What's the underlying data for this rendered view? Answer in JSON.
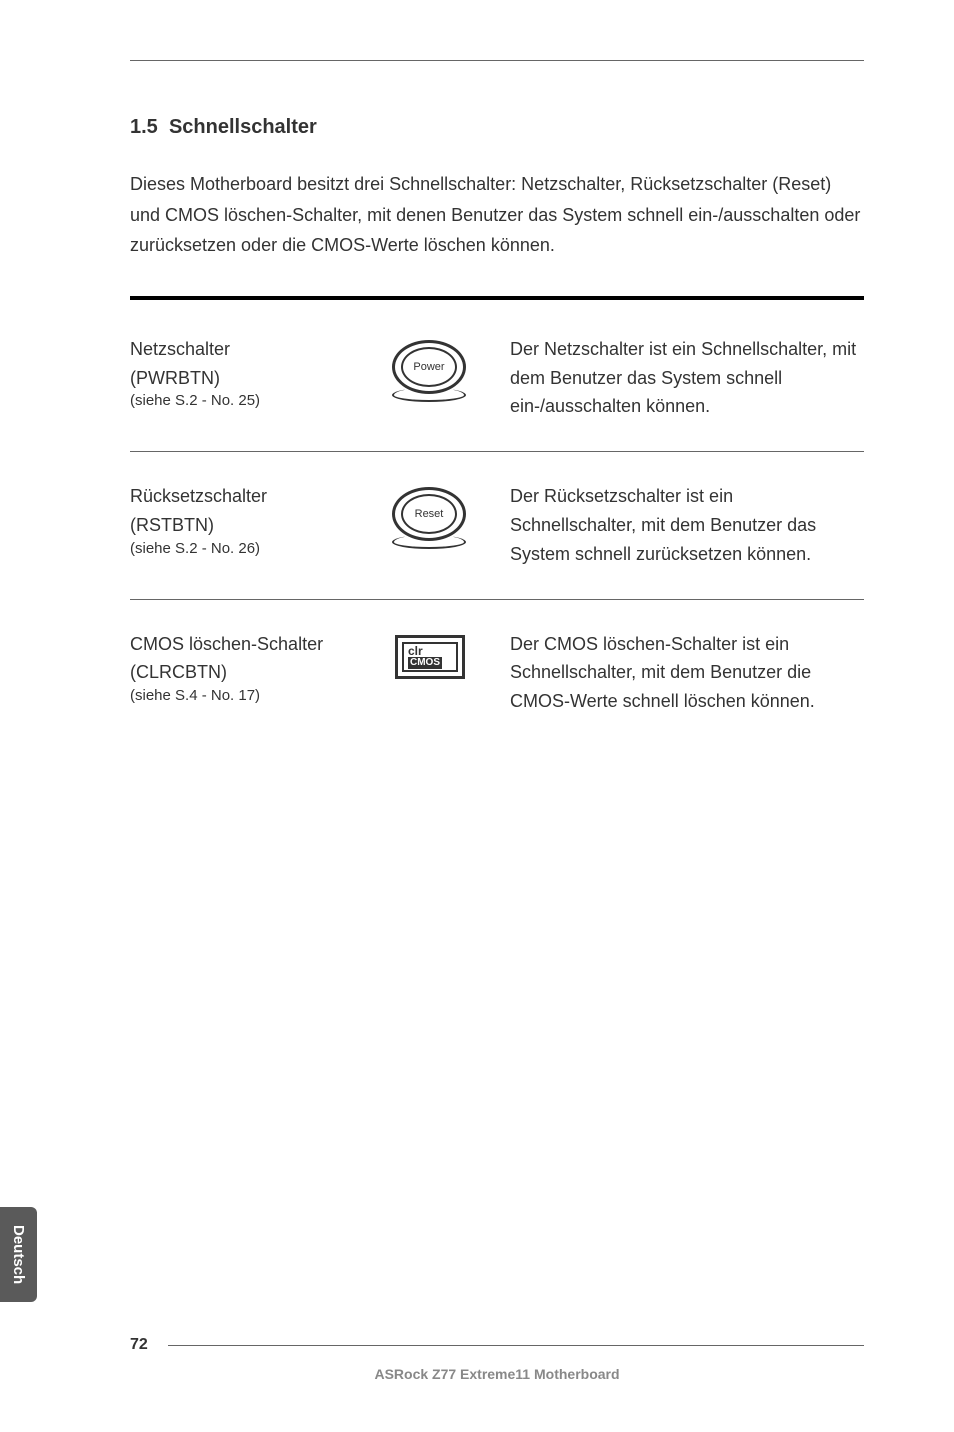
{
  "section": {
    "number": "1.5",
    "title": "Schnellschalter"
  },
  "intro": "Dieses Motherboard besitzt drei Schnellschalter: Netzschalter, Rücksetzschalter (Reset) und CMOS löschen-Schalter, mit denen Benutzer das System schnell ein-/ausschalten oder zurücksetzen oder die CMOS-Werte löschen können.",
  "switches": [
    {
      "name": "Netzschalter",
      "code": "(PWRBTN)",
      "ref": "(siehe S.2 - No. 25)",
      "icon_label": "Power",
      "description": "Der Netzschalter ist ein Schnellschalter, mit dem Benutzer das System schnell ein-/ausschalten können."
    },
    {
      "name": "Rücksetzschalter",
      "code": "(RSTBTN)",
      "ref": "(siehe S.2 - No. 26)",
      "icon_label": "Reset",
      "description": "Der Rücksetzschalter ist ein Schnellschalter, mit dem Benutzer das System schnell zurücksetzen können."
    },
    {
      "name": "CMOS löschen-Schalter",
      "code": "(CLRCBTN)",
      "ref": "(siehe S.4 - No. 17)",
      "cmos_label_top": "clr",
      "cmos_label_bottom": "CMOS",
      "description": "Der CMOS löschen-Schalter ist ein Schnellschalter, mit dem Benutzer die CMOS-Werte schnell löschen können."
    }
  ],
  "side_tab": "Deutsch",
  "footer": {
    "page": "72",
    "product": "ASRock Z77 Extreme11 Motherboard"
  },
  "colors": {
    "text": "#333333",
    "tab_bg": "#5a5a5a",
    "footer_text": "#888888"
  }
}
